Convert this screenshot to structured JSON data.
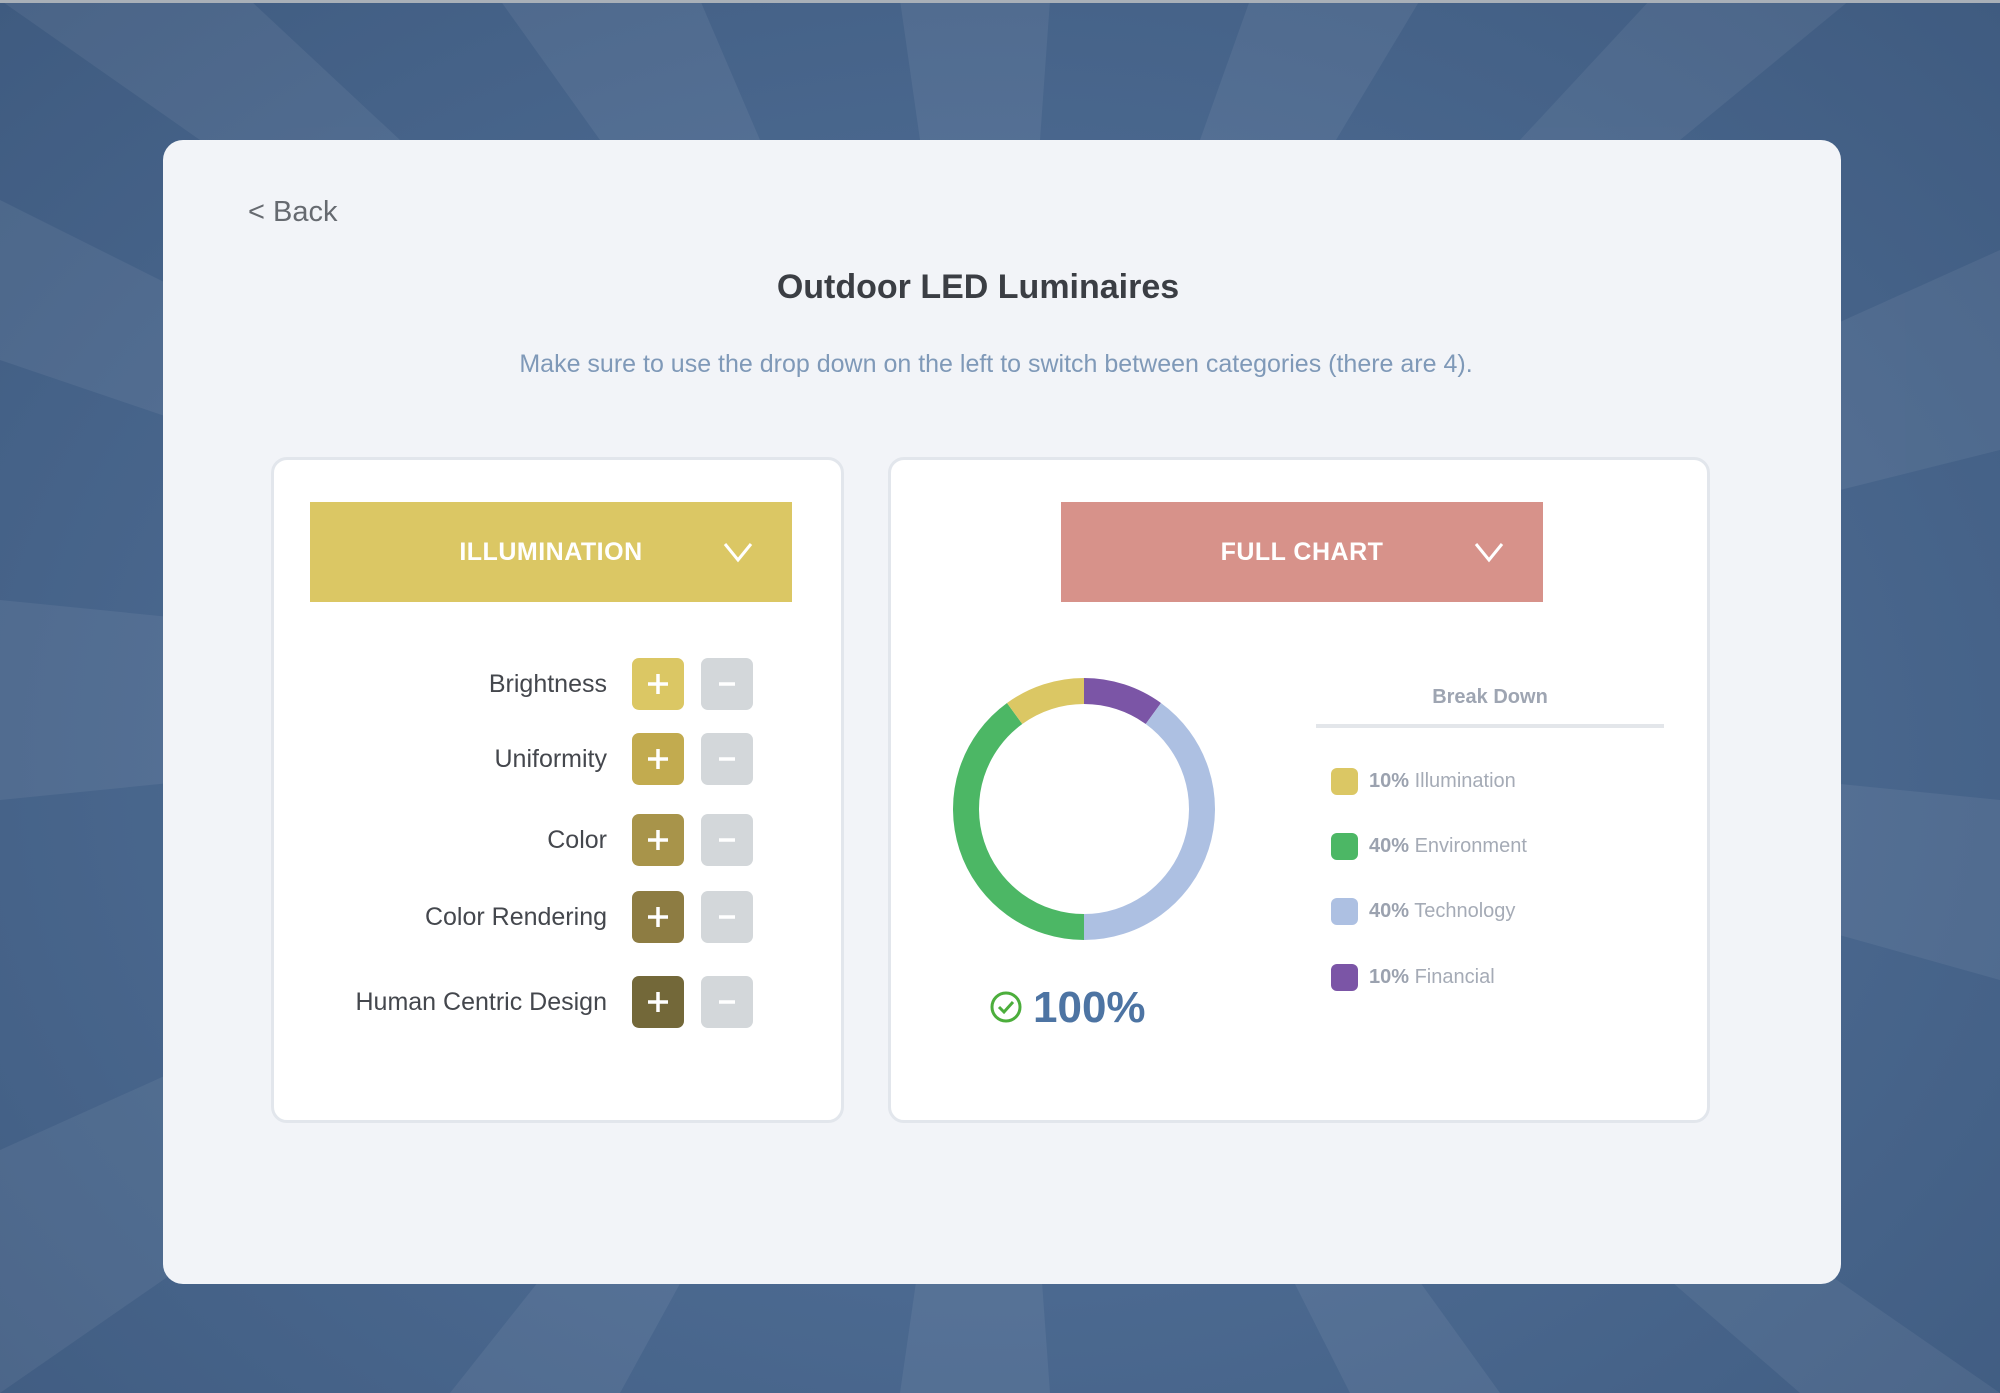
{
  "header": {
    "back_label": "< Back",
    "title": "Outdoor LED Luminaires",
    "subtitle": "Make sure to use the drop down on the left to switch between categories (there are 4)."
  },
  "left_panel": {
    "dropdown_label": "ILLUMINATION",
    "dropdown_color": "#dbc764",
    "items": [
      {
        "label": "Brightness",
        "plus_color": "#dbc764"
      },
      {
        "label": "Uniformity",
        "plus_color": "#c2ab4f"
      },
      {
        "label": "Color",
        "plus_color": "#a8944a"
      },
      {
        "label": "Color Rendering",
        "plus_color": "#8d7c42"
      },
      {
        "label": "Human Centric Design",
        "plus_color": "#736839"
      }
    ],
    "plus_icon": "plus-icon",
    "minus_icon": "minus-icon"
  },
  "right_panel": {
    "dropdown_label": "FULL CHART",
    "dropdown_color": "#d7928a",
    "total_percent": "100%",
    "total_icon": "check-circle-icon",
    "breakdown_title": "Break Down",
    "legend": [
      {
        "percent": "10%",
        "name": "Illumination",
        "color": "#dbc764"
      },
      {
        "percent": "40%",
        "name": "Environment",
        "color": "#4cb765"
      },
      {
        "percent": "40%",
        "name": "Technology",
        "color": "#adc0e2"
      },
      {
        "percent": "10%",
        "name": "Financial",
        "color": "#7b55a6"
      }
    ]
  },
  "chart_data": {
    "type": "pie",
    "title": "",
    "categories": [
      "Financial",
      "Technology",
      "Environment",
      "Illumination"
    ],
    "values": [
      10,
      40,
      40,
      10
    ],
    "colors": [
      "#7b55a6",
      "#adc0e2",
      "#4cb765",
      "#dbc764"
    ],
    "donut": true
  }
}
